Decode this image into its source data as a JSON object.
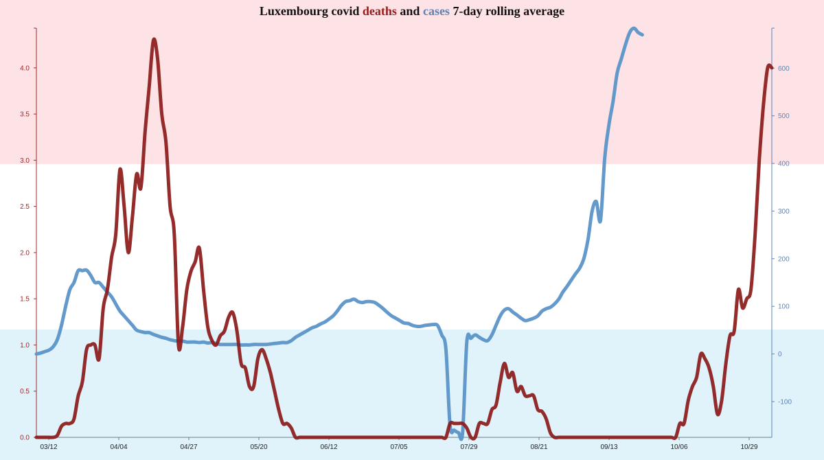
{
  "title": {
    "prefix": "Luxembourg covid ",
    "deaths_word": "deaths",
    "middle": " and ",
    "cases_word": "cases",
    "suffix": " 7-day rolling average"
  },
  "colors": {
    "deaths": "#8b1a1a",
    "cases": "#5b93c8",
    "left_axis": "#a02828",
    "right_axis": "#5b84b8",
    "band_top": "#fde2e6",
    "band_middle": "#ffffff",
    "band_bottom": "#e0f2fa"
  },
  "chart_data": {
    "type": "line",
    "x_ticks": [
      "03/12",
      "04/04",
      "04/27",
      "05/20",
      "06/12",
      "07/05",
      "07/29",
      "08/21",
      "09/13",
      "10/06",
      "10/29"
    ],
    "y_left": {
      "ticks": [
        "0.0",
        "0.5",
        "1.0",
        "1.5",
        "2.0",
        "2.5",
        "3.0",
        "3.5",
        "4.0"
      ],
      "range": [
        0,
        4.43
      ]
    },
    "y_right": {
      "ticks": [
        "-100",
        "0",
        "100",
        "200",
        "300",
        "400",
        "500",
        "600"
      ],
      "range": [
        -175,
        684
      ]
    },
    "series": [
      {
        "name": "deaths",
        "axis": "left",
        "x_start": "03/12",
        "values": [
          0,
          0,
          0,
          0,
          0,
          0.02,
          0.12,
          0.15,
          0.15,
          0.2,
          0.45,
          0.6,
          0.95,
          1.0,
          1.0,
          0.85,
          1.4,
          1.6,
          1.95,
          2.2,
          2.9,
          2.5,
          2.0,
          2.4,
          2.85,
          2.7,
          3.3,
          3.8,
          4.3,
          4.1,
          3.5,
          3.2,
          2.5,
          2.2,
          1.0,
          1.2,
          1.6,
          1.8,
          1.9,
          2.05,
          1.6,
          1.2,
          1.05,
          1.0,
          1.1,
          1.15,
          1.3,
          1.35,
          1.15,
          0.8,
          0.75,
          0.55,
          0.55,
          0.85,
          0.95,
          0.85,
          0.7,
          0.5,
          0.3,
          0.15,
          0.15,
          0.1,
          0,
          0,
          0,
          0,
          0,
          0,
          0,
          0,
          0,
          0,
          0,
          0,
          0,
          0,
          0,
          0,
          0,
          0,
          0,
          0,
          0,
          0,
          0,
          0,
          0,
          0,
          0,
          0,
          0,
          0,
          0,
          0,
          0,
          0,
          0,
          0,
          0,
          0.15,
          0.15,
          0.15,
          0.15,
          0.1,
          0,
          0,
          0.15,
          0.15,
          0.15,
          0.3,
          0.35,
          0.6,
          0.8,
          0.65,
          0.7,
          0.5,
          0.55,
          0.45,
          0.45,
          0.45,
          0.3,
          0.28,
          0.2,
          0.05,
          0,
          0,
          0,
          0,
          0,
          0,
          0,
          0,
          0,
          0,
          0,
          0,
          0,
          0,
          0,
          0,
          0,
          0,
          0,
          0,
          0,
          0,
          0,
          0,
          0,
          0,
          0,
          0,
          0,
          0,
          0.15,
          0.15,
          0.4,
          0.55,
          0.65,
          0.9,
          0.85,
          0.75,
          0.55,
          0.25,
          0.4,
          0.8,
          1.1,
          1.15,
          1.6,
          1.4,
          1.5,
          1.6,
          2.2,
          3.0,
          3.6,
          4.0,
          4.0
        ]
      },
      {
        "name": "cases",
        "axis": "right",
        "x_start": "03/12",
        "values": [
          0,
          2,
          5,
          8,
          15,
          30,
          60,
          100,
          135,
          150,
          175,
          175,
          176,
          165,
          150,
          150,
          140,
          130,
          120,
          105,
          90,
          80,
          70,
          60,
          50,
          47,
          45,
          45,
          41,
          38,
          35,
          33,
          30,
          28,
          27,
          27,
          25,
          25,
          25,
          24,
          25,
          23,
          24,
          22,
          20,
          20,
          20,
          20,
          20,
          19,
          19,
          19,
          20,
          20,
          20,
          20,
          21,
          22,
          23,
          24,
          24,
          28,
          35,
          40,
          45,
          50,
          55,
          58,
          63,
          67,
          73,
          80,
          90,
          102,
          110,
          112,
          115,
          110,
          108,
          110,
          110,
          108,
          102,
          95,
          87,
          80,
          75,
          70,
          65,
          64,
          60,
          58,
          58,
          60,
          61,
          62,
          60,
          40,
          10,
          -150,
          -160,
          -165,
          -165,
          25,
          33,
          40,
          35,
          30,
          28,
          40,
          60,
          80,
          92,
          95,
          88,
          82,
          75,
          70,
          72,
          75,
          80,
          90,
          95,
          98,
          105,
          115,
          130,
          142,
          155,
          168,
          180,
          200,
          240,
          300,
          320,
          280,
          410,
          480,
          530,
          590,
          620,
          650,
          675,
          684,
          675,
          670
        ]
      }
    ]
  }
}
